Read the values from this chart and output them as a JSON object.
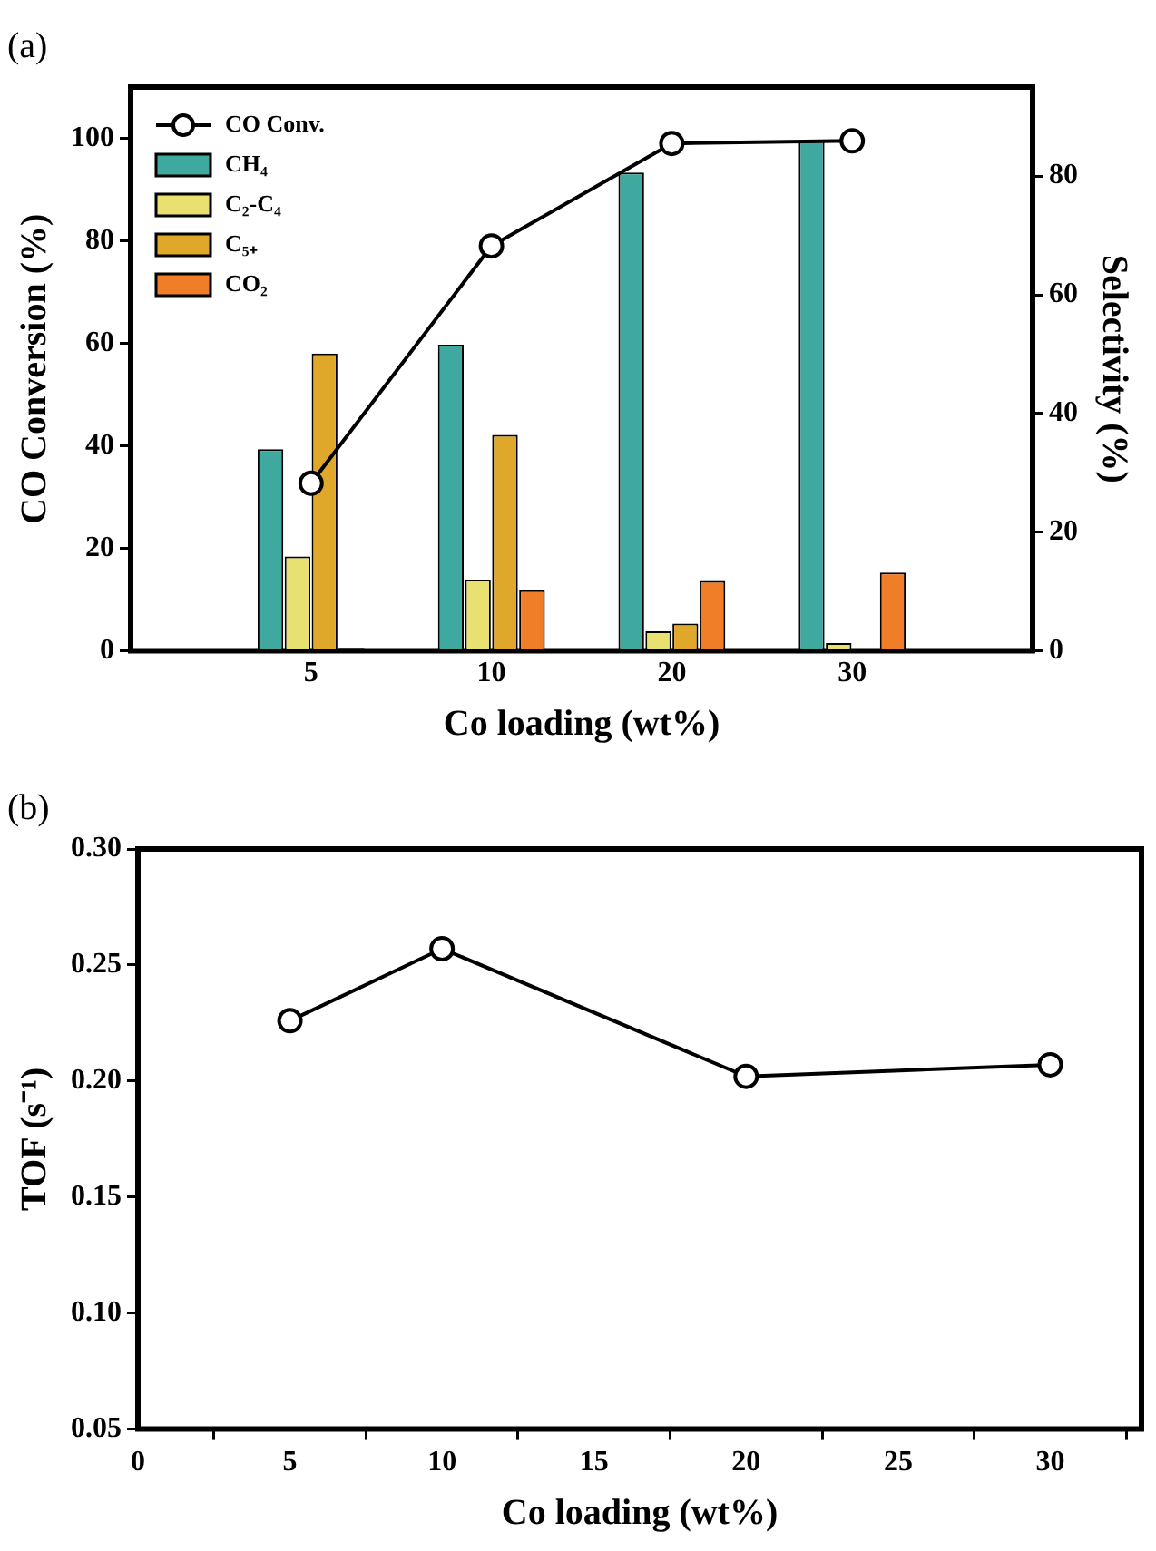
{
  "chart_data": [
    {
      "type": "bar",
      "title": "(a)",
      "categories": [
        "5",
        "10",
        "20",
        "30"
      ],
      "xlabel": "Co loading (wt%)",
      "ylabel": "CO Conversion (%)",
      "y2label": "Selectivity (%)",
      "ylim": [
        0,
        110
      ],
      "yticks": [
        0,
        20,
        40,
        60,
        80,
        100
      ],
      "y2lim": [
        0,
        95
      ],
      "y2ticks": [
        0,
        20,
        40,
        60,
        80
      ],
      "legend": "top left",
      "grid": false,
      "marker": "circle",
      "series": [
        {
          "name": "CO Conv.",
          "type": "line",
          "color": "#000000",
          "values": [
            32.7,
            79,
            99,
            99.5
          ]
        },
        {
          "name": "CH₄",
          "color": "#3fa99f",
          "axis": "y2",
          "values": [
            34.0,
            51.6,
            80.6,
            85.9
          ]
        },
        {
          "name": "C₂-C₄",
          "color": "#e8e070",
          "axis": "y2",
          "values": [
            15.9,
            12.0,
            3.3,
            1.3
          ]
        },
        {
          "name": "C₅₊",
          "color": "#e0a82a",
          "axis": "y2",
          "values": [
            50.1,
            36.4,
            4.6,
            0
          ]
        },
        {
          "name": "CO₂",
          "color": "#f07d28",
          "axis": "y2",
          "values": [
            0.5,
            10.2,
            11.8,
            13.2
          ]
        }
      ]
    },
    {
      "type": "line",
      "title": "(b)",
      "x": [
        5,
        10,
        20,
        30
      ],
      "xlabel": "Co loading (wt%)",
      "ylabel": "TOF (s⁻¹)",
      "xlim": [
        0,
        33
      ],
      "xticks": [
        0,
        5,
        10,
        15,
        20,
        25,
        30
      ],
      "ylim": [
        0.05,
        0.3
      ],
      "yticks": [
        0.05,
        {
          "value": 0.1,
          "label": "0.10"
        },
        0.15,
        {
          "value": 0.2,
          "label": "0.20"
        },
        0.25,
        {
          "value": 0.3,
          "label": "0.30"
        }
      ],
      "grid": false,
      "marker": "circle",
      "series": [
        {
          "color": "#000000",
          "values": [
            0.226,
            0.257,
            0.202,
            0.207
          ]
        }
      ]
    }
  ]
}
